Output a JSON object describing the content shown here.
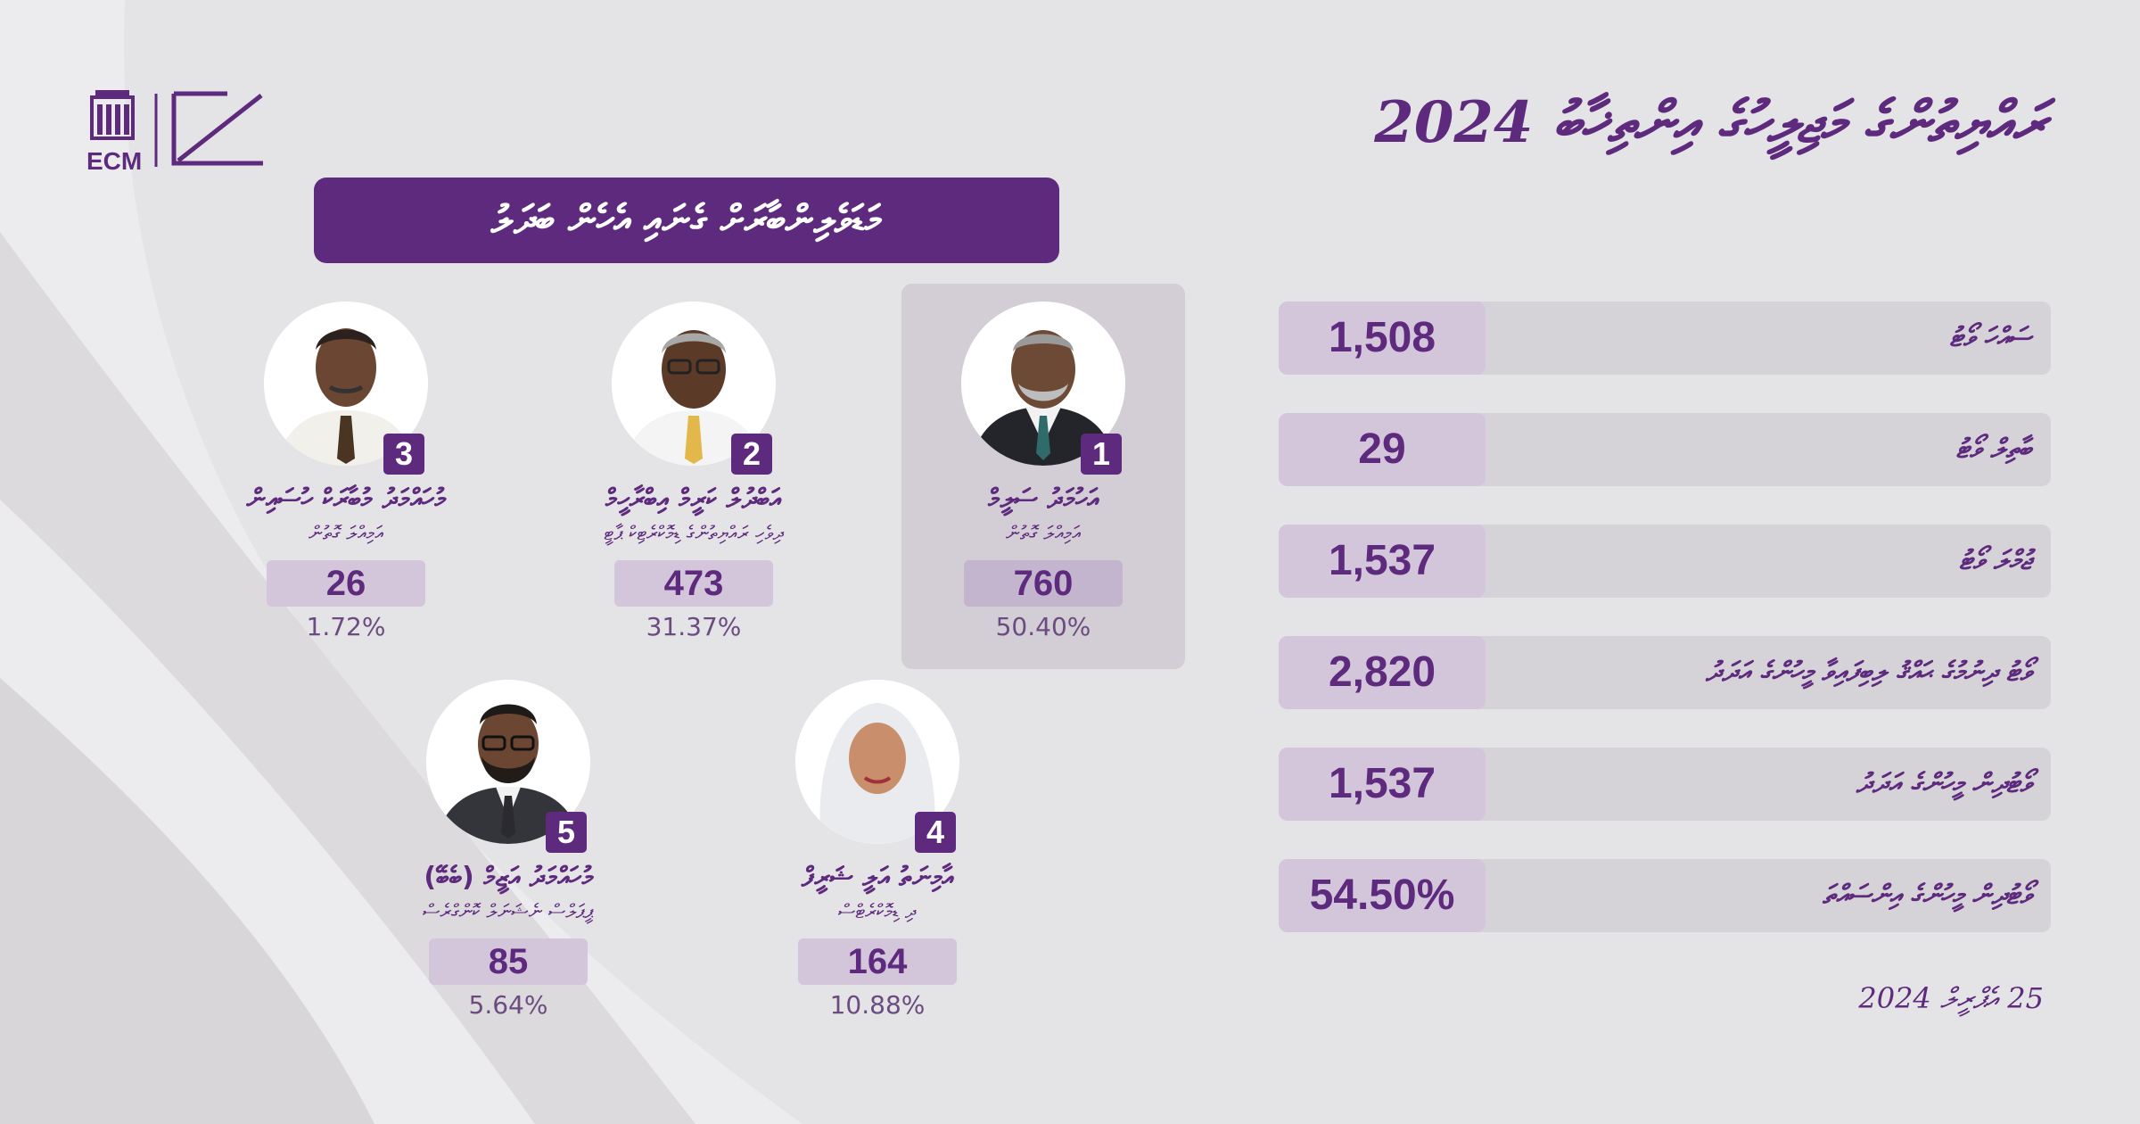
{
  "logo": {
    "text": "ECM"
  },
  "title": "ރައްޔިތުންގެ މަޖިލީހުގެ އިންތިޚާބު 2024",
  "banner": "މަޑަވެލިންބާރަށް ގެނައި އެހެން ބަދަލު",
  "candidates": [
    {
      "number": "1",
      "name": "އަހުމަދު ސަލީމް",
      "party": "އަމިއްލަ ގޮތުން",
      "votes": "760",
      "percent": "50.40%"
    },
    {
      "number": "2",
      "name": "އަބްދުލް ކަރީމް އިބްރާހީމް",
      "party": "ދިވެހި ރައްޔިތުންގެ ޑިމޮކްރެޓިކް ޕާޓީ",
      "votes": "473",
      "percent": "31.37%"
    },
    {
      "number": "3",
      "name": "މުހައްމަދު މުބާރަކް ހުސައިން",
      "party": "އަމިއްލަ ގޮތުން",
      "votes": "26",
      "percent": "1.72%"
    },
    {
      "number": "4",
      "name": "އާމިނަތު އަލީ ޝަރީފް",
      "party": "ދި ޑިމޮކްރެޓްސް",
      "votes": "164",
      "percent": "10.88%"
    },
    {
      "number": "5",
      "name": "މުހައްމަދު އަޒީމް (ބެބޭ)",
      "party": "ޕީޕަލްސް ނެޝަނަލް ކޮންގްރެސް",
      "votes": "85",
      "percent": "5.64%"
    }
  ],
  "stats": [
    {
      "label": "ސައްހަ ވޯޓު",
      "value": "1,508"
    },
    {
      "label": "ބާތިލް ވޯޓު",
      "value": "29"
    },
    {
      "label": "ޖުމްލަ ވޯޓު",
      "value": "1,537"
    },
    {
      "label": "ވޯޓު ދިނުމުގެ ޙައްޤު ލިބިފައިވާ މީހުންގެ އަދަދު",
      "value": "2,820"
    },
    {
      "label": "ވޯޓުދިން މީހުންގެ އަދަދު",
      "value": "1,537"
    },
    {
      "label": "ވޯޓުދިން މީހުންގެ އިންސައްތަ",
      "value": "54.50%"
    }
  ],
  "date": "25 އެޕްރީލް 2024",
  "colors": {
    "primary": "#5e2a7e",
    "background": "#e4e3e5",
    "value_box": "#d3c6db",
    "row_bg": "#d6d3d8"
  }
}
